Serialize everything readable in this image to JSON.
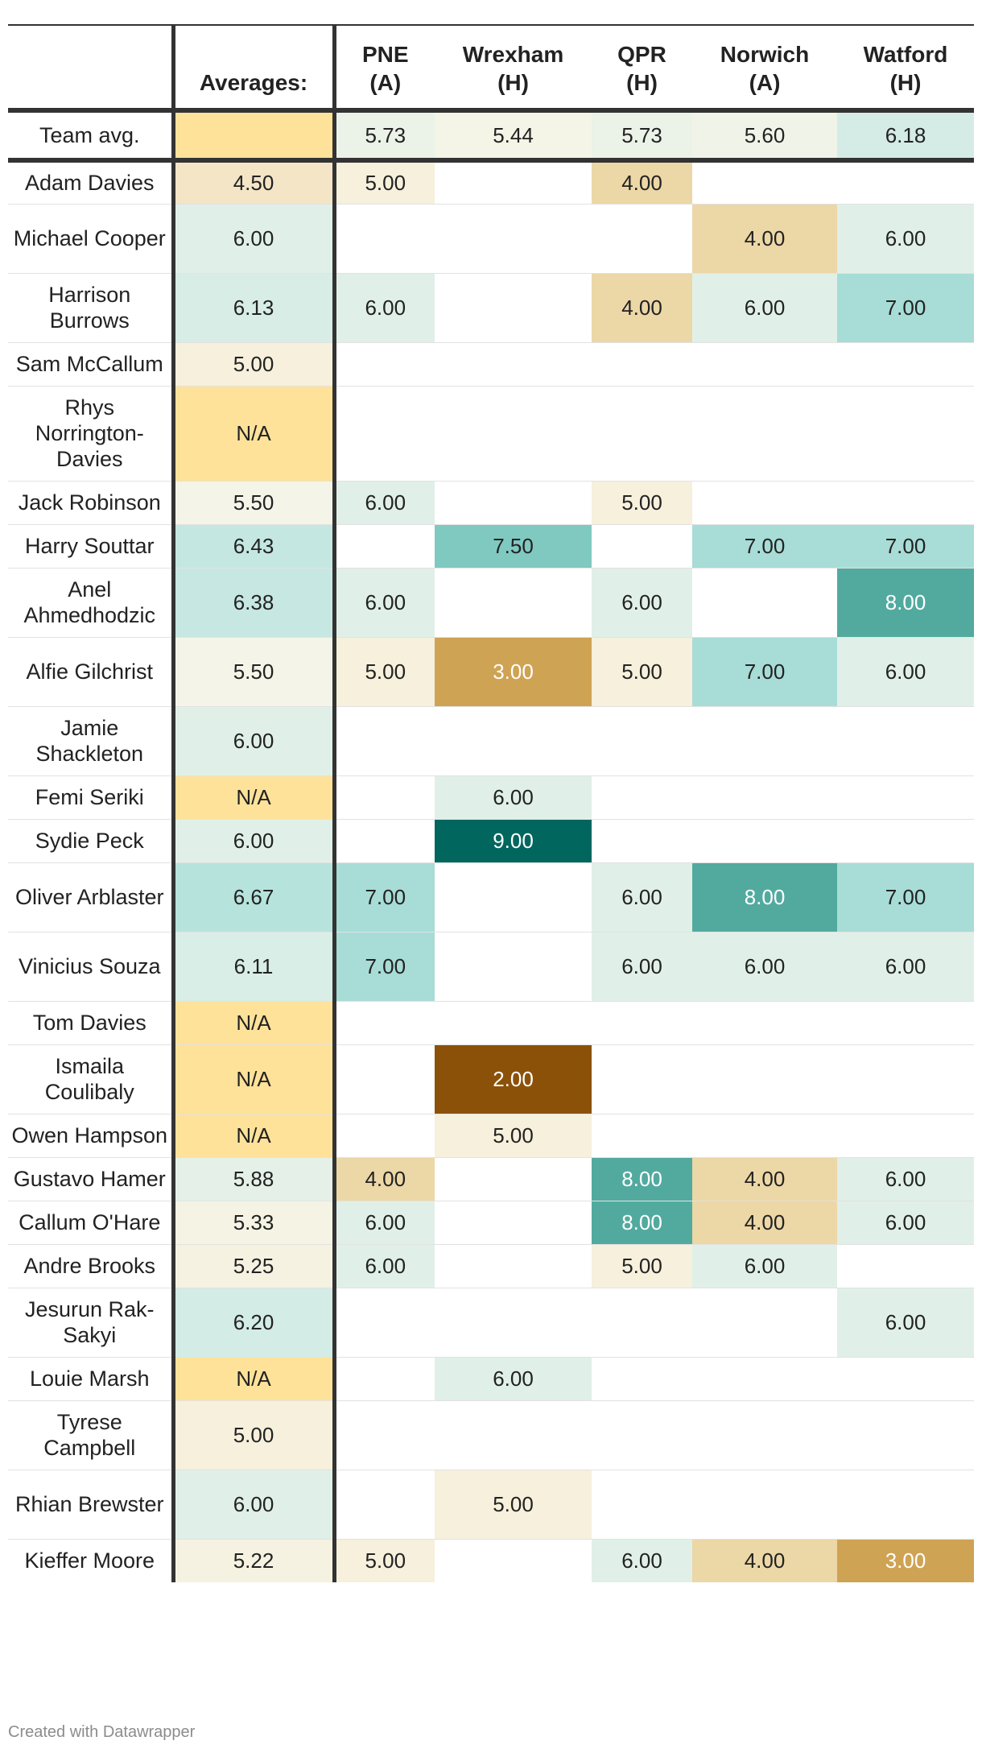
{
  "chart_data": {
    "type": "table",
    "columns": [
      {
        "line1": "",
        "line2": ""
      },
      {
        "line1": "",
        "line2": "Averages:"
      },
      {
        "line1": "PNE",
        "line2": "(A)"
      },
      {
        "line1": "Wrexham",
        "line2": "(H)"
      },
      {
        "line1": "QPR",
        "line2": "(H)"
      },
      {
        "line1": "Norwich",
        "line2": "(A)"
      },
      {
        "line1": "Watford",
        "line2": "(H)"
      }
    ],
    "team_row": {
      "label": "Team avg.",
      "avg": "",
      "scores": [
        "5.73",
        "5.44",
        "5.73",
        "5.60",
        "6.18"
      ]
    },
    "rows": [
      {
        "name": "Adam Davies",
        "avg": "4.50",
        "scores": [
          "5.00",
          "",
          "4.00",
          "",
          ""
        ]
      },
      {
        "name": "Michael Cooper",
        "avg": "6.00",
        "scores": [
          "",
          "",
          "",
          "4.00",
          "6.00"
        ]
      },
      {
        "name": "Harrison Burrows",
        "avg": "6.13",
        "scores": [
          "6.00",
          "",
          "4.00",
          "6.00",
          "7.00"
        ]
      },
      {
        "name": "Sam McCallum",
        "avg": "5.00",
        "scores": [
          "",
          "",
          "",
          "",
          ""
        ]
      },
      {
        "name": "Rhys Norrington-Davies",
        "avg": "N/A",
        "scores": [
          "",
          "",
          "",
          "",
          ""
        ]
      },
      {
        "name": "Jack Robinson",
        "avg": "5.50",
        "scores": [
          "6.00",
          "",
          "5.00",
          "",
          ""
        ]
      },
      {
        "name": "Harry Souttar",
        "avg": "6.43",
        "scores": [
          "",
          "7.50",
          "",
          "7.00",
          "7.00"
        ]
      },
      {
        "name": "Anel Ahmedhodzic",
        "avg": "6.38",
        "scores": [
          "6.00",
          "",
          "6.00",
          "",
          "8.00"
        ]
      },
      {
        "name": "Alfie Gilchrist",
        "avg": "5.50",
        "scores": [
          "5.00",
          "3.00",
          "5.00",
          "7.00",
          "6.00"
        ]
      },
      {
        "name": "Jamie Shackleton",
        "avg": "6.00",
        "scores": [
          "",
          "",
          "",
          "",
          ""
        ]
      },
      {
        "name": "Femi Seriki",
        "avg": "N/A",
        "scores": [
          "",
          "6.00",
          "",
          "",
          ""
        ]
      },
      {
        "name": "Sydie Peck",
        "avg": "6.00",
        "scores": [
          "",
          "9.00",
          "",
          "",
          ""
        ]
      },
      {
        "name": "Oliver Arblaster",
        "avg": "6.67",
        "scores": [
          "7.00",
          "",
          "6.00",
          "8.00",
          "7.00"
        ]
      },
      {
        "name": "Vinicius Souza",
        "avg": "6.11",
        "scores": [
          "7.00",
          "",
          "6.00",
          "6.00",
          "6.00"
        ]
      },
      {
        "name": "Tom Davies",
        "avg": "N/A",
        "scores": [
          "",
          "",
          "",
          "",
          ""
        ]
      },
      {
        "name": "Ismaila Coulibaly",
        "avg": "N/A",
        "scores": [
          "",
          "2.00",
          "",
          "",
          ""
        ]
      },
      {
        "name": "Owen Hampson",
        "avg": "N/A",
        "scores": [
          "",
          "5.00",
          "",
          "",
          ""
        ]
      },
      {
        "name": "Gustavo Hamer",
        "avg": "5.88",
        "scores": [
          "4.00",
          "",
          "8.00",
          "4.00",
          "6.00"
        ]
      },
      {
        "name": "Callum O'Hare",
        "avg": "5.33",
        "scores": [
          "6.00",
          "",
          "8.00",
          "4.00",
          "6.00"
        ]
      },
      {
        "name": "Andre Brooks",
        "avg": "5.25",
        "scores": [
          "6.00",
          "",
          "5.00",
          "6.00",
          ""
        ]
      },
      {
        "name": "Jesurun Rak-Sakyi",
        "avg": "6.20",
        "scores": [
          "",
          "",
          "",
          "",
          "6.00"
        ]
      },
      {
        "name": "Louie Marsh",
        "avg": "N/A",
        "scores": [
          "",
          "6.00",
          "",
          "",
          ""
        ]
      },
      {
        "name": "Tyrese Campbell",
        "avg": "5.00",
        "scores": [
          "",
          "",
          "",
          "",
          ""
        ]
      },
      {
        "name": "Rhian Brewster",
        "avg": "6.00",
        "scores": [
          "",
          "5.00",
          "",
          "",
          ""
        ]
      },
      {
        "name": "Kieffer Moore",
        "avg": "5.22",
        "scores": [
          "5.00",
          "",
          "6.00",
          "4.00",
          "3.00"
        ]
      }
    ],
    "color_scale": {
      "na": "#ffe29a",
      "2.00": "#8c5109",
      "3.00": "#cfa354",
      "4.00": "#ecd7a6",
      "4.50": "#f3e5c6",
      "5.00": "#f6f0dc",
      "5.50": "#f4f4e8",
      "6.00": "#e0f0e8",
      "6.50": "#bfe6e0",
      "7.00": "#a8dcd6",
      "7.50": "#7fc9c1",
      "8.00": "#52aa9f",
      "9.00": "#01665e"
    }
  },
  "footer": "Created with Datawrapper"
}
